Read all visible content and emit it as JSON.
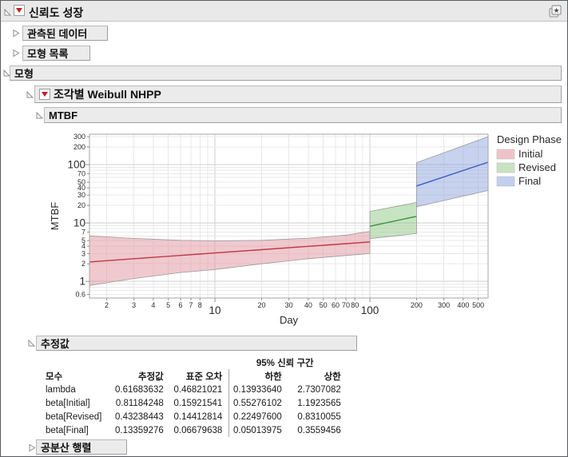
{
  "window": {
    "title": "신뢰도 성장"
  },
  "sections": {
    "observed": {
      "label": "관측된 데이터",
      "state": "collapsed"
    },
    "model_list": {
      "label": "모형 목록",
      "state": "collapsed"
    },
    "models": {
      "label": "모형",
      "state": "open"
    },
    "piecewise": {
      "label": "조각별 Weibull NHPP",
      "state": "open"
    },
    "mtbf": {
      "label": "MTBF",
      "state": "open"
    },
    "estimates": {
      "label": "추정값",
      "state": "open"
    },
    "covariance": {
      "label": "공분산 행렬",
      "state": "collapsed"
    }
  },
  "chart_data": {
    "type": "line-with-confidence-bands",
    "x_scale": "log",
    "y_scale": "log",
    "xlabel": "Day",
    "ylabel": "MTBF",
    "x_domain": [
      1.55,
      579
    ],
    "y_domain": [
      0.52,
      331
    ],
    "x_ticks_major": [
      10,
      100
    ],
    "x_ticks_minor": [
      2,
      3,
      4,
      5,
      6,
      7,
      8,
      20,
      30,
      40,
      50,
      60,
      70,
      80,
      200,
      300,
      400,
      500
    ],
    "y_ticks_major": [
      1,
      10,
      100
    ],
    "y_ticks_minor": [
      0.6,
      2,
      3,
      4,
      5,
      7,
      20,
      30,
      40,
      50,
      70,
      200,
      300
    ],
    "legend": {
      "title": "Design Phase",
      "items": [
        {
          "label": "Initial",
          "swatch": "#eec3c8"
        },
        {
          "label": "Revised",
          "swatch": "#c9e2c0"
        },
        {
          "label": "Final",
          "swatch": "#c3cfee"
        }
      ]
    },
    "phases": [
      {
        "name": "Initial",
        "line_color": "#c03746",
        "fill_color": "#e2949e",
        "t": [
          1.55,
          3,
          6,
          10,
          20,
          40,
          70,
          100
        ],
        "center": [
          2.15,
          2.45,
          2.79,
          3.07,
          3.5,
          3.99,
          4.43,
          4.74
        ],
        "lower": [
          0.85,
          1.12,
          1.42,
          1.6,
          2.0,
          2.45,
          2.78,
          3.0
        ],
        "upper": [
          6.0,
          5.45,
          5.05,
          4.95,
          5.05,
          5.5,
          6.2,
          7.2
        ]
      },
      {
        "name": "Revised",
        "line_color": "#3d9140",
        "fill_color": "#8fc986",
        "t": [
          100,
          200
        ],
        "center": [
          8.8,
          13.0
        ],
        "lower": [
          5.4,
          6.6
        ],
        "upper": [
          15.8,
          22.5
        ]
      },
      {
        "name": "Final",
        "line_color": "#3a5bc7",
        "fill_color": "#8fa5dd",
        "t": [
          200,
          579
        ],
        "center": [
          43,
          110
        ],
        "lower": [
          19,
          36
        ],
        "upper": [
          108,
          300
        ]
      }
    ]
  },
  "estimates_table": {
    "group_header": "95% 신뢰 구간",
    "columns": [
      "모수",
      "추정값",
      "표준 오차",
      "하한",
      "상한"
    ],
    "rows": [
      [
        "lambda",
        "0.61683632",
        "0.46821021",
        "0.13933640",
        "2.7307082"
      ],
      [
        "beta[Initial]",
        "0.81184248",
        "0.15921541",
        "0.55276102",
        "1.1923565"
      ],
      [
        "beta[Revised]",
        "0.43238443",
        "0.14412814",
        "0.22497600",
        "0.8310055"
      ],
      [
        "beta[Final]",
        "0.13359276",
        "0.06679638",
        "0.05013975",
        "0.3559456"
      ]
    ]
  }
}
